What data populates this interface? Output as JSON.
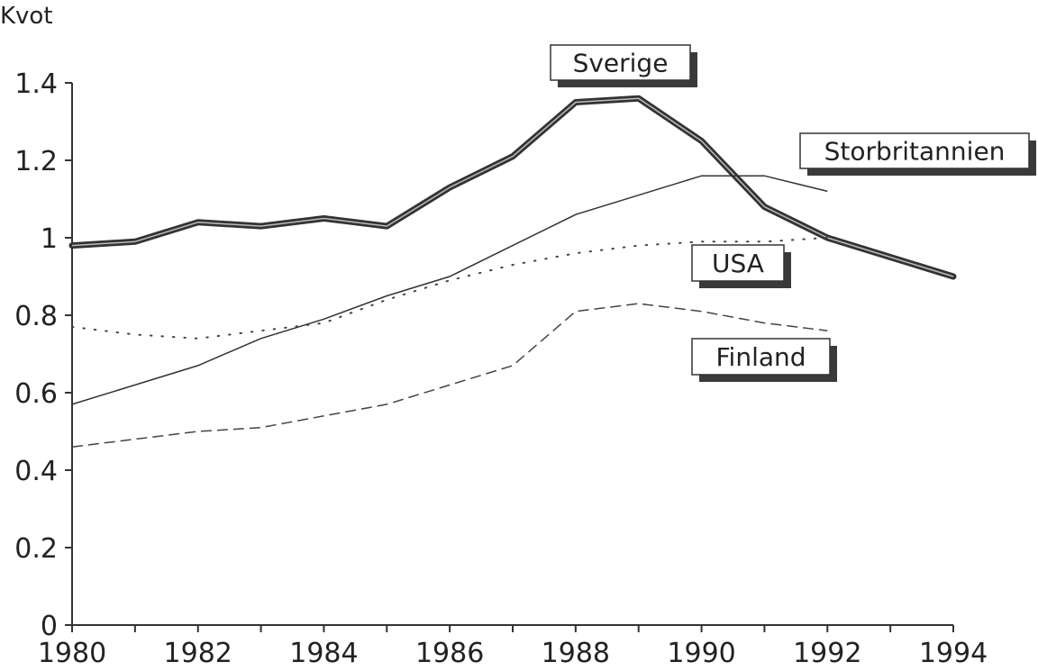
{
  "chart_data": {
    "type": "line",
    "ylabel": "Kvot",
    "xlabel": "",
    "xlim": [
      1980,
      1994
    ],
    "ylim": [
      0,
      1.4
    ],
    "x_ticks": [
      "1980",
      "1982",
      "1984",
      "1986",
      "1988",
      "1990",
      "1992",
      "1994"
    ],
    "y_ticks": [
      "0",
      "0.2",
      "0.4",
      "0.6",
      "0.8",
      "1",
      "1.2",
      "1.4"
    ],
    "grid": false,
    "series": [
      {
        "name": "Sverige",
        "style": "thick-double",
        "x": [
          1980,
          1981,
          1982,
          1983,
          1984,
          1985,
          1986,
          1987,
          1988,
          1989,
          1990,
          1991,
          1992,
          1993,
          1994
        ],
        "values": [
          0.98,
          0.99,
          1.04,
          1.03,
          1.05,
          1.03,
          1.13,
          1.21,
          1.35,
          1.36,
          1.25,
          1.08,
          1.0,
          0.95,
          0.9
        ]
      },
      {
        "name": "Storbritannien",
        "style": "solid",
        "x": [
          1980,
          1981,
          1982,
          1983,
          1984,
          1985,
          1986,
          1987,
          1988,
          1989,
          1990,
          1991,
          1992
        ],
        "values": [
          0.57,
          0.62,
          0.67,
          0.74,
          0.79,
          0.85,
          0.9,
          0.98,
          1.06,
          1.11,
          1.16,
          1.16,
          1.12
        ]
      },
      {
        "name": "USA",
        "style": "dotted",
        "x": [
          1980,
          1981,
          1982,
          1983,
          1984,
          1985,
          1986,
          1987,
          1988,
          1989,
          1990,
          1991,
          1992
        ],
        "values": [
          0.77,
          0.75,
          0.74,
          0.76,
          0.78,
          0.84,
          0.89,
          0.93,
          0.96,
          0.98,
          0.99,
          0.99,
          1.0
        ]
      },
      {
        "name": "Finland",
        "style": "dashed",
        "x": [
          1980,
          1981,
          1982,
          1983,
          1984,
          1985,
          1986,
          1987,
          1988,
          1989,
          1990,
          1991,
          1992
        ],
        "values": [
          0.46,
          0.48,
          0.5,
          0.51,
          0.54,
          0.57,
          0.62,
          0.67,
          0.81,
          0.83,
          0.81,
          0.78,
          0.76
        ]
      }
    ]
  }
}
